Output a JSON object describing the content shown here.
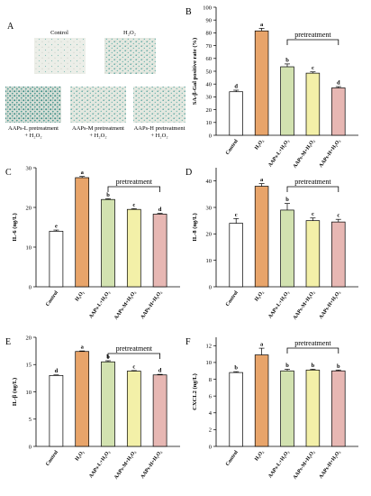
{
  "figure": {
    "panel_a": {
      "letter": "A",
      "images": [
        {
          "label": "Control",
          "label2": "",
          "texture": "light"
        },
        {
          "label": "H₂O₂",
          "label2": "",
          "texture": "medium"
        },
        {
          "label": "AAPs-L pretreatment",
          "label2": "+ H₂O₂",
          "texture": "dark"
        },
        {
          "label": "AAPs-M pretreatment",
          "label2": "+ H₂O₂",
          "texture": "medium"
        },
        {
          "label": "AAPs-H pretreatment",
          "label2": "+ H₂O₂",
          "texture": "medium"
        }
      ]
    },
    "colors": {
      "bars": [
        "#ffffff",
        "#e8a46a",
        "#d2e2b0",
        "#f3f0a8",
        "#e7b7b3"
      ],
      "texture_base": "#e9ece6",
      "texture_dot": "#2f8f8a"
    }
  },
  "chart_data": [
    {
      "panel": "B",
      "type": "bar",
      "categories": [
        "Control",
        "H₂O₂",
        "AAPs-L+H₂O₂",
        "AAPs-M+H₂O₂",
        "AAPs-H+H₂O₂"
      ],
      "values": [
        34,
        81.5,
        53.5,
        48.5,
        37
      ],
      "errors": [
        1.2,
        2.0,
        2.2,
        1.0,
        1.0
      ],
      "letters": [
        "d",
        "a",
        "b",
        "c",
        "d"
      ],
      "ylabel": "SA-β-Gal positive rate (%)",
      "ylim": [
        0,
        100
      ],
      "yticks": [
        0,
        10,
        20,
        30,
        40,
        50,
        60,
        70,
        80,
        90,
        100
      ],
      "bracket_label": "pretreatment",
      "grid": false
    },
    {
      "panel": "C",
      "type": "bar",
      "categories": [
        "Control",
        "H₂O₂",
        "AAPs-L+H₂O₂",
        "AAPs-M+H₂O₂",
        "AAPs-H+H₂O₂"
      ],
      "values": [
        14,
        27.5,
        22,
        19.5,
        18.3
      ],
      "errors": [
        0.3,
        0.3,
        0.2,
        0.2,
        0.2
      ],
      "letters": [
        "e",
        "a",
        "b",
        "c",
        "d"
      ],
      "ylabel": "IL-6 (ng/L)",
      "ylim": [
        0,
        30
      ],
      "yticks": [
        0,
        10,
        20,
        30
      ],
      "bracket_label": "pretreatment",
      "grid": false
    },
    {
      "panel": "D",
      "type": "bar",
      "categories": [
        "Control",
        "H₂O₂",
        "AAPs-L+H₂O₂",
        "AAPs-M+H₂O₂",
        "AAPs-H+H₂O₂"
      ],
      "values": [
        24,
        38,
        29,
        25,
        24.5
      ],
      "errors": [
        1.8,
        1.0,
        2.5,
        1.0,
        1.0
      ],
      "letters": [
        "c",
        "a",
        "b",
        "c",
        "c"
      ],
      "ylabel": "IL-8 (ng/L)",
      "ylim": [
        0,
        45
      ],
      "yticks": [
        0,
        10,
        20,
        30,
        40
      ],
      "bracket_label": "pretreatment",
      "grid": false
    },
    {
      "panel": "E",
      "type": "bar",
      "categories": [
        "Control",
        "H₂O₂",
        "AAPs-L+H₂O₂",
        "AAPs-M+H₂O₂",
        "AAPs-H+H₂O₂"
      ],
      "values": [
        13,
        17.4,
        15.5,
        13.8,
        13.1
      ],
      "errors": [
        0.1,
        0.1,
        0.2,
        0.1,
        0.1
      ],
      "letters": [
        "d",
        "a",
        "b",
        "c",
        "d"
      ],
      "ylabel": "IL-β (ng/L)",
      "ylim": [
        0,
        20
      ],
      "yticks": [
        0,
        5,
        10,
        15,
        20
      ],
      "bracket_label": "pretreatment",
      "grid": false
    },
    {
      "panel": "F",
      "type": "bar",
      "categories": [
        "Control",
        "H₂O₂",
        "AAPs-L+H₂O₂",
        "AAPs-M+H₂O₂",
        "AAPs-H+H₂O₂"
      ],
      "values": [
        8.8,
        10.9,
        9.0,
        9.1,
        9.0
      ],
      "errors": [
        0.1,
        0.8,
        0.2,
        0.1,
        0.1
      ],
      "letters": [
        "b",
        "a",
        "b",
        "b",
        "b"
      ],
      "ylabel": "CXCL2 (ng/L)",
      "ylim": [
        0,
        13
      ],
      "yticks": [
        0,
        2,
        4,
        6,
        8,
        10,
        12
      ],
      "bracket_label": "pretreatment",
      "grid": false
    }
  ]
}
